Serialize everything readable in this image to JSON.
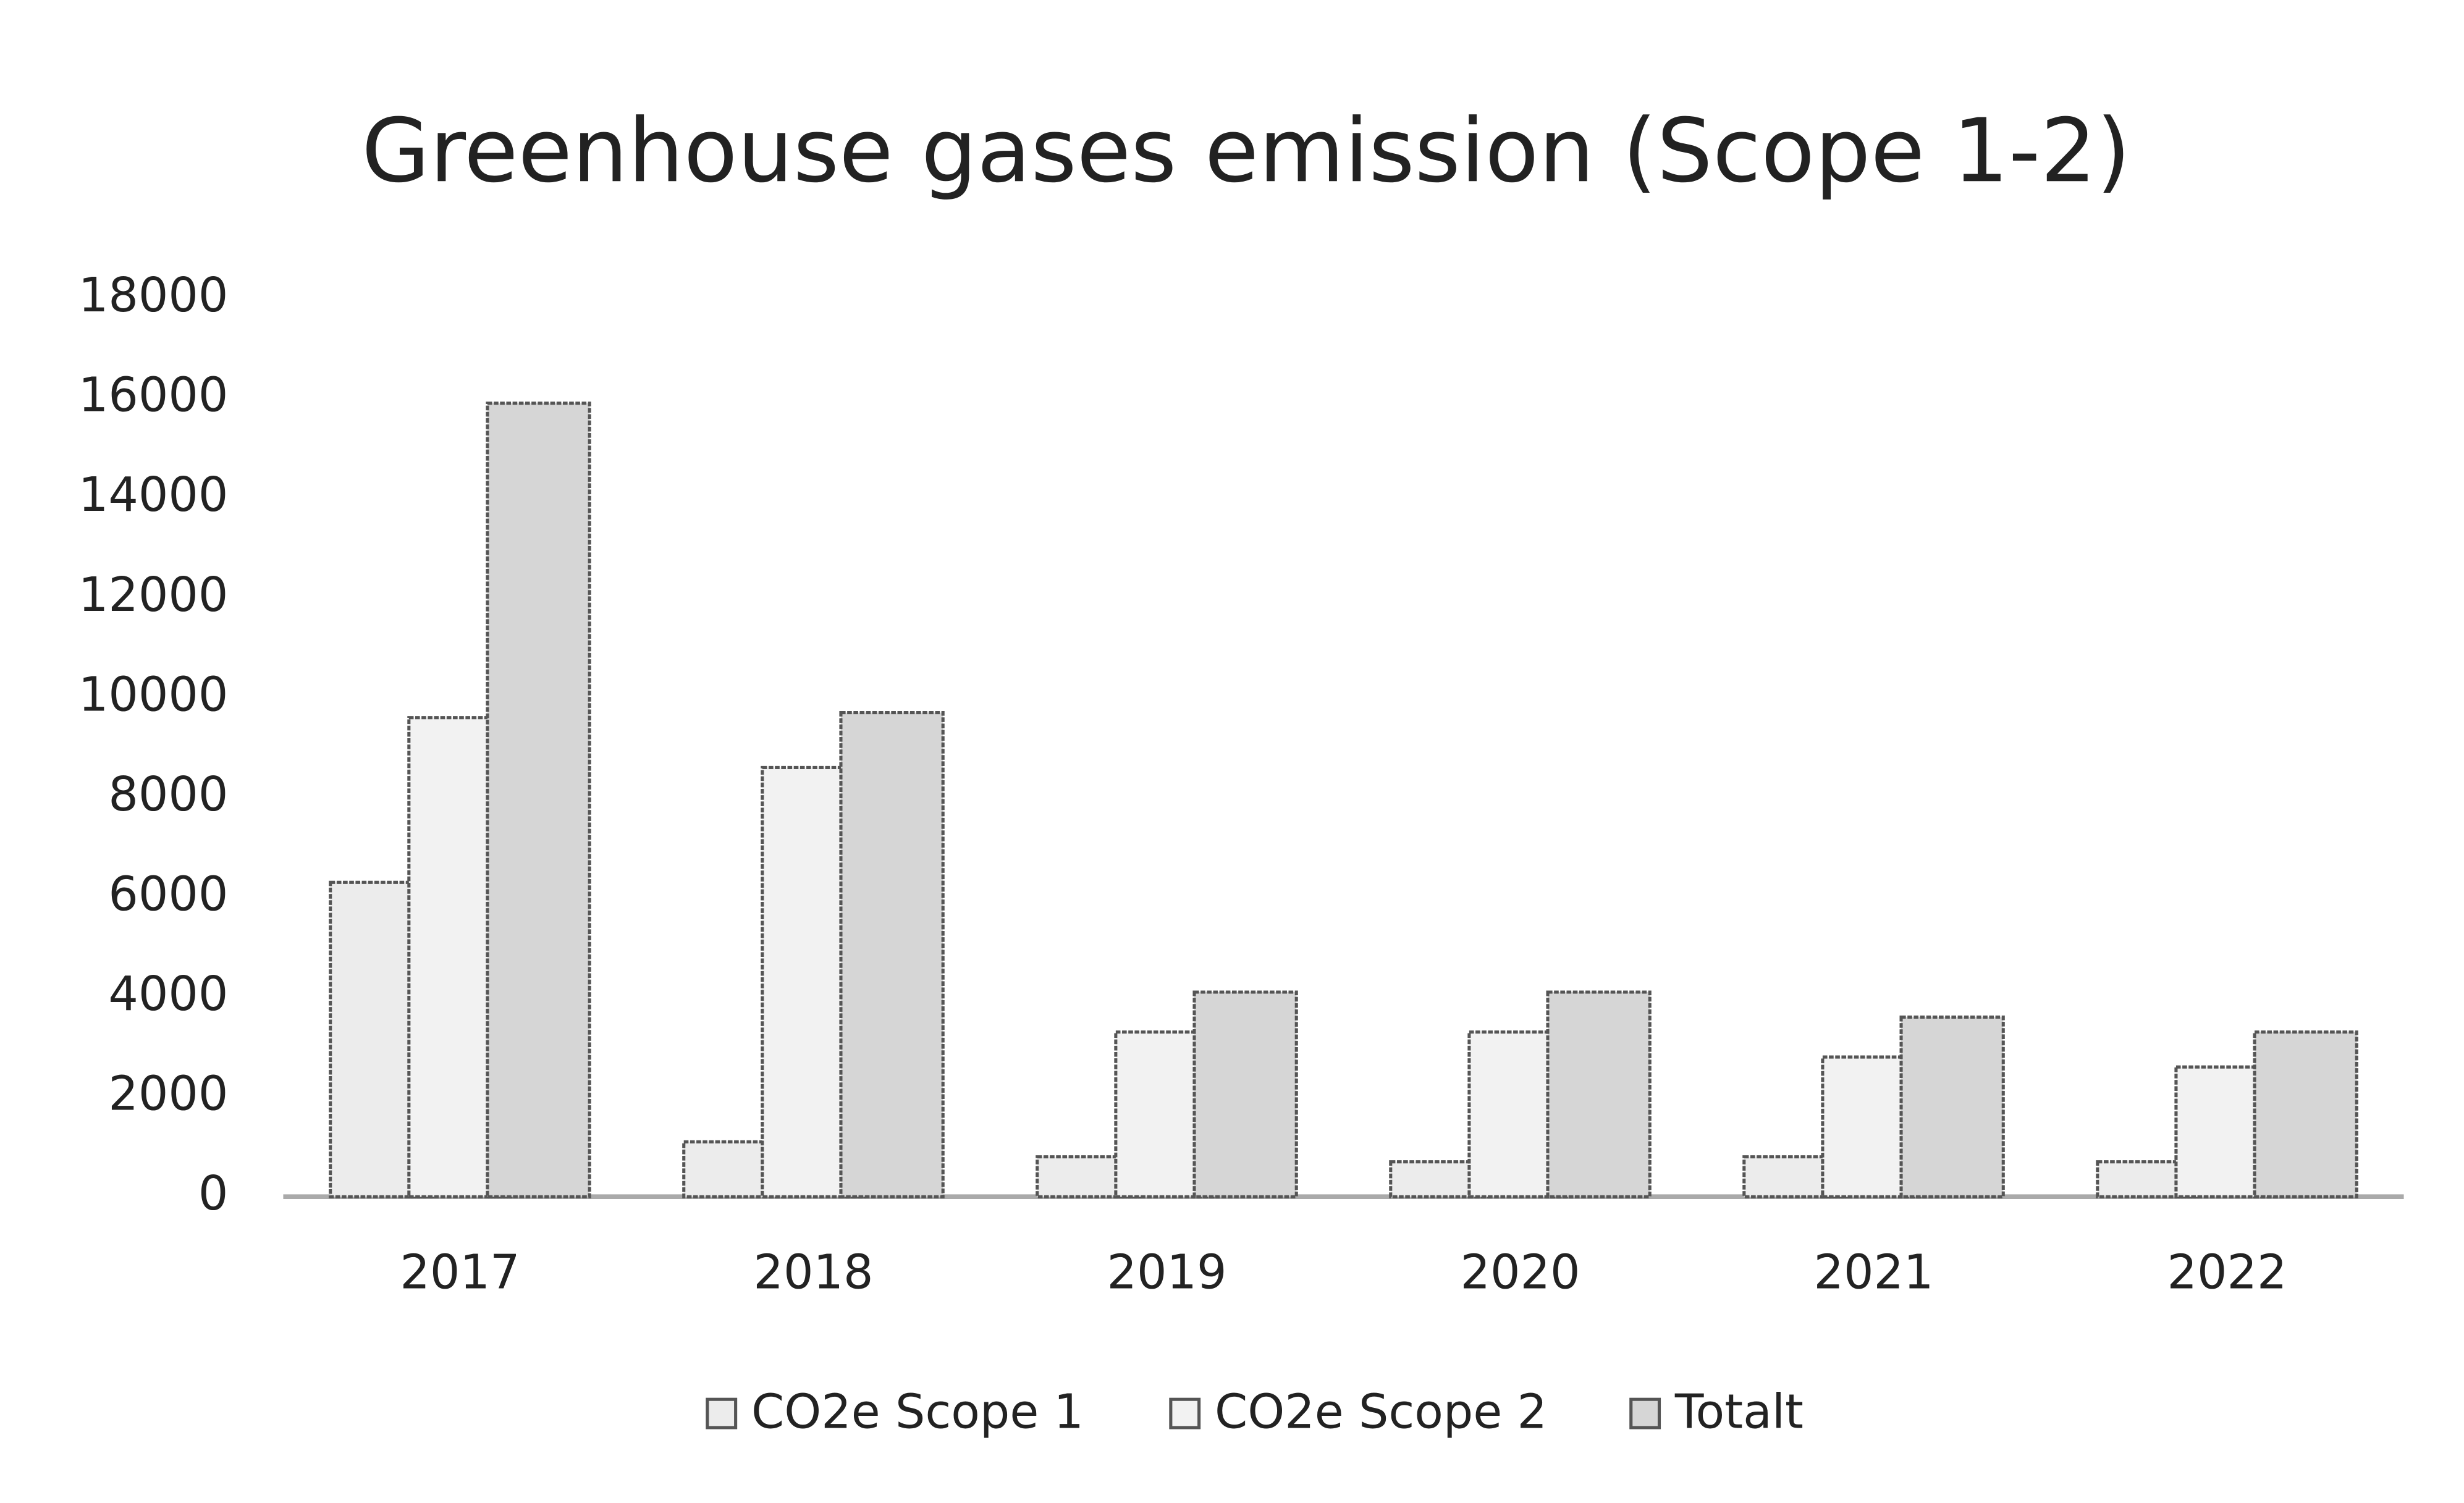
{
  "chart_data": {
    "type": "bar",
    "title": "Greenhouse gases emission (Scope 1-2)",
    "categories": [
      "2017",
      "2018",
      "2019",
      "2020",
      "2021",
      "2022"
    ],
    "series": [
      {
        "name": "CO2e Scope 1",
        "color": "#ececec",
        "values": [
          6300,
          1100,
          800,
          700,
          800,
          700
        ]
      },
      {
        "name": "CO2e Scope 2",
        "color": "#f2f2f2",
        "values": [
          9600,
          8600,
          3300,
          3300,
          2800,
          2600
        ]
      },
      {
        "name": "Totalt",
        "color": "#d6d6d6",
        "values": [
          15900,
          9700,
          4100,
          4100,
          3600,
          3300
        ]
      }
    ],
    "ylim": [
      0,
      18000
    ],
    "yticks": [
      0,
      2000,
      4000,
      6000,
      8000,
      10000,
      12000,
      14000,
      16000,
      18000
    ],
    "grid": false,
    "legend": "bottom"
  }
}
